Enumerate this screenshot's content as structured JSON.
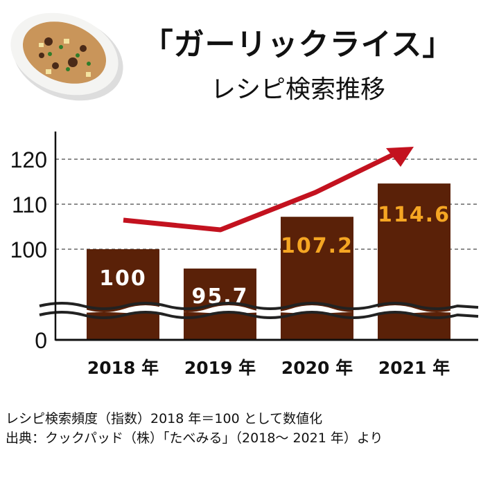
{
  "title": "「ガーリックライス」",
  "subtitle": "レシピ検索推移",
  "notes": [
    "レシピ検索頻度（指数）2018 年＝100 として数値化",
    "出典：クックパッド（株）「たべみる」（2018～ 2021 年）より"
  ],
  "chart_data": {
    "type": "bar",
    "title": "「ガーリックライス」レシピ検索推移",
    "categories": [
      "2018 年",
      "2019 年",
      "2020 年",
      "2021 年"
    ],
    "values": [
      100,
      95.7,
      107.2,
      114.6
    ],
    "value_labels": [
      "100",
      "95.7",
      "107.2",
      "114.6"
    ],
    "yticks": [
      0,
      100,
      110,
      120
    ],
    "ytick_labels": [
      "0",
      "100",
      "110",
      "120"
    ],
    "ylim": [
      0,
      125
    ],
    "axis_break": true,
    "grid": true,
    "xlabel": "",
    "ylabel": "",
    "colors": {
      "bar": "#5a2108",
      "label_low": "#ffffff",
      "label_high": "#f5a623",
      "arrow": "#c3121f"
    }
  }
}
